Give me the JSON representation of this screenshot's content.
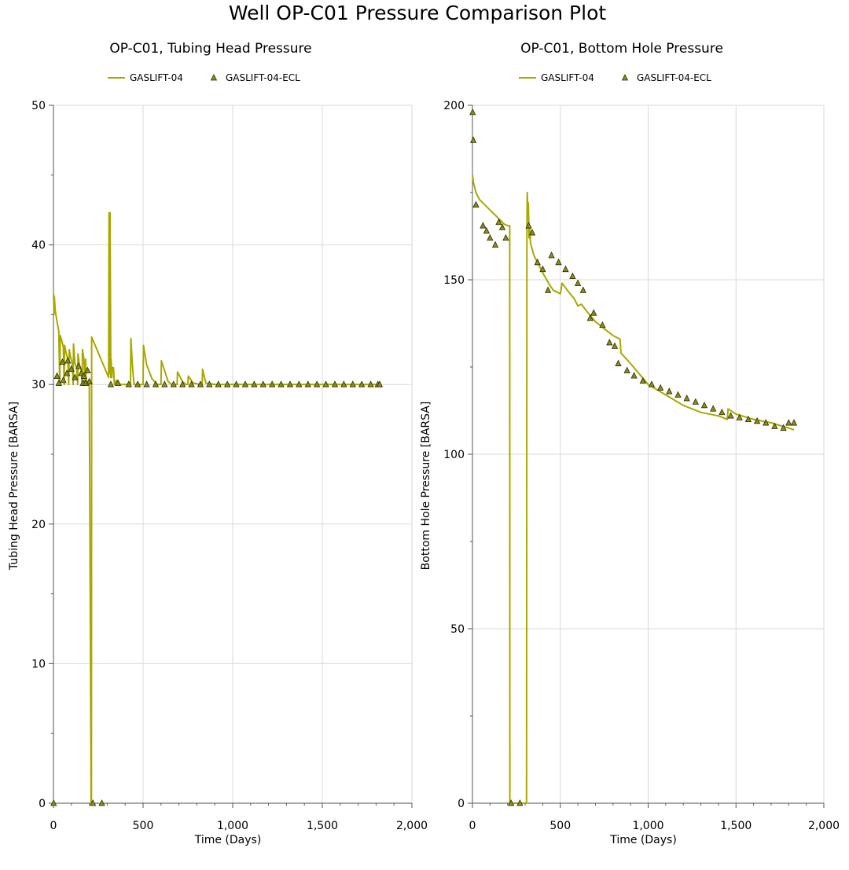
{
  "title": "Well OP-C01 Pressure Comparison Plot",
  "colors": {
    "line": "#a8a800",
    "marker_fill": "#8c8c1e",
    "marker_stroke": "#2b2b00",
    "grid": "#d9d9d9",
    "axis": "#555555"
  },
  "chart_data": [
    {
      "type": "line",
      "title": "OP-C01, Tubing Head Pressure",
      "xlabel": "Time (Days)",
      "ylabel": "Tubing Head Pressure [BARSA]",
      "xlim": [
        0,
        2000
      ],
      "ylim": [
        0,
        50
      ],
      "xticks": [
        0,
        500,
        1000,
        1500,
        2000
      ],
      "xtick_labels": [
        "0",
        "500",
        "1,000",
        "1,500",
        "2,000"
      ],
      "yticks": [
        0,
        10,
        20,
        30,
        40,
        50
      ],
      "ytick_labels": [
        "0",
        "10",
        "20",
        "30",
        "40",
        "50"
      ],
      "grid": true,
      "legend": "top-center",
      "series": [
        {
          "name": "GASLIFT-04",
          "kind": "line",
          "x": [
            1,
            3,
            5,
            10,
            20,
            30,
            35,
            38,
            45,
            55,
            60,
            62,
            70,
            80,
            85,
            88,
            95,
            105,
            110,
            112,
            120,
            130,
            135,
            137,
            145,
            155,
            160,
            162,
            170,
            175,
            180,
            182,
            190,
            195,
            200,
            210,
            212,
            213,
            308,
            310,
            314,
            316,
            320,
            322,
            326,
            328,
            335,
            340,
            345,
            350,
            360,
            370,
            400,
            420,
            430,
            432,
            440,
            445,
            450,
            460,
            500,
            502,
            520,
            550,
            580,
            600,
            602,
            640,
            660,
            680,
            690,
            692,
            720,
            740,
            750,
            752,
            780,
            820,
            830,
            832,
            850,
            900,
            1000,
            1200,
            1500,
            1820
          ],
          "y": [
            36.5,
            35,
            36.3,
            35.3,
            34.5,
            33.8,
            30,
            33.5,
            33.2,
            32.7,
            30,
            32.8,
            32.3,
            31.8,
            30,
            32.5,
            32,
            31.5,
            30,
            32.9,
            31.5,
            31.2,
            30,
            32.2,
            31.4,
            31,
            30,
            32.5,
            31.8,
            30,
            31.8,
            30.4,
            30,
            30,
            30,
            0,
            0,
            33.4,
            30.5,
            42.3,
            30.8,
            42.3,
            30.5,
            31.8,
            30.5,
            31.2,
            31.2,
            30,
            30,
            30.3,
            30,
            30,
            30,
            30,
            30,
            33.3,
            31.5,
            30.6,
            30,
            30,
            30,
            32.8,
            31.4,
            30.4,
            30,
            30,
            31.7,
            30.2,
            30,
            30,
            30,
            30.9,
            30.2,
            30,
            30,
            30.6,
            30.1,
            30,
            30,
            31.1,
            30.1,
            30,
            30,
            30,
            30,
            30
          ]
        },
        {
          "name": "GASLIFT-04-ECL",
          "kind": "scatter",
          "x": [
            1,
            20,
            30,
            50,
            55,
            75,
            80,
            100,
            120,
            140,
            155,
            165,
            170,
            180,
            190,
            200,
            220,
            270,
            320,
            360,
            420,
            470,
            520,
            570,
            620,
            670,
            720,
            770,
            820,
            870,
            920,
            970,
            1020,
            1070,
            1120,
            1170,
            1220,
            1270,
            1320,
            1370,
            1420,
            1470,
            1520,
            1570,
            1620,
            1670,
            1720,
            1770,
            1810,
            1820
          ],
          "y": [
            0,
            30.6,
            30.1,
            31.6,
            30.3,
            30.8,
            31.7,
            31.1,
            30.5,
            31.3,
            30.8,
            30.1,
            30.6,
            30.1,
            31,
            30.2,
            0,
            0,
            30,
            30.1,
            30,
            30,
            30,
            30,
            30,
            30,
            30,
            30,
            30,
            30,
            30,
            30,
            30,
            30,
            30,
            30,
            30,
            30,
            30,
            30,
            30,
            30,
            30,
            30,
            30,
            30,
            30,
            30,
            30,
            30
          ]
        }
      ]
    },
    {
      "type": "line",
      "title": "OP-C01, Bottom Hole Pressure",
      "xlabel": "Time (Days)",
      "ylabel": "Bottom Hole Pressure [BARSA]",
      "xlim": [
        0,
        2000
      ],
      "ylim": [
        0,
        200
      ],
      "xticks": [
        0,
        500,
        1000,
        1500,
        2000
      ],
      "xtick_labels": [
        "0",
        "500",
        "1,000",
        "1,500",
        "2,000"
      ],
      "yticks": [
        0,
        50,
        100,
        150,
        200
      ],
      "ytick_labels": [
        "0",
        "50",
        "100",
        "150",
        "200"
      ],
      "grid": true,
      "legend": "top-center",
      "series": [
        {
          "name": "GASLIFT-04",
          "kind": "line",
          "x": [
            1,
            5,
            10,
            20,
            40,
            60,
            80,
            100,
            120,
            140,
            160,
            180,
            200,
            205,
            210,
            212,
            213,
            308,
            310,
            312,
            315,
            318,
            322,
            326,
            330,
            350,
            400,
            440,
            460,
            500,
            510,
            540,
            580,
            600,
            620,
            650,
            700,
            750,
            800,
            840,
            845,
            900,
            1000,
            1100,
            1200,
            1300,
            1400,
            1450,
            1455,
            1500,
            1600,
            1700,
            1800,
            1830
          ],
          "y": [
            180,
            178,
            177,
            175,
            173,
            172,
            171,
            170,
            169,
            168,
            167,
            166,
            165.5,
            165.5,
            165.5,
            165.5,
            0,
            0,
            165,
            175,
            170,
            172,
            162,
            165,
            160.5,
            157,
            152,
            148.5,
            147,
            146,
            149,
            147,
            144.5,
            142.5,
            143,
            141,
            138,
            136,
            134,
            133,
            129,
            126,
            120,
            117,
            114,
            112,
            111,
            110,
            113,
            111.5,
            110,
            109,
            107.5,
            107
          ]
        },
        {
          "name": "GASLIFT-04-ECL",
          "kind": "scatter",
          "x": [
            1,
            5,
            20,
            60,
            80,
            100,
            130,
            150,
            170,
            190,
            220,
            270,
            320,
            340,
            370,
            400,
            430,
            450,
            490,
            530,
            570,
            600,
            630,
            670,
            690,
            740,
            780,
            810,
            830,
            880,
            920,
            970,
            1020,
            1070,
            1120,
            1170,
            1220,
            1270,
            1320,
            1370,
            1420,
            1470,
            1520,
            1570,
            1620,
            1670,
            1720,
            1770,
            1800,
            1830
          ],
          "y": [
            198,
            190,
            171.5,
            165.5,
            164,
            162,
            160,
            166.5,
            165,
            162,
            0,
            0,
            165.5,
            163.5,
            155,
            153,
            147,
            157,
            155,
            153,
            151,
            149,
            147,
            139,
            140.5,
            137,
            132,
            131,
            126,
            124,
            122.5,
            121,
            120,
            119,
            118,
            117,
            116,
            115,
            114,
            113,
            112,
            111,
            110.5,
            110,
            109.5,
            109,
            108,
            107.5,
            109,
            109
          ]
        }
      ]
    }
  ]
}
